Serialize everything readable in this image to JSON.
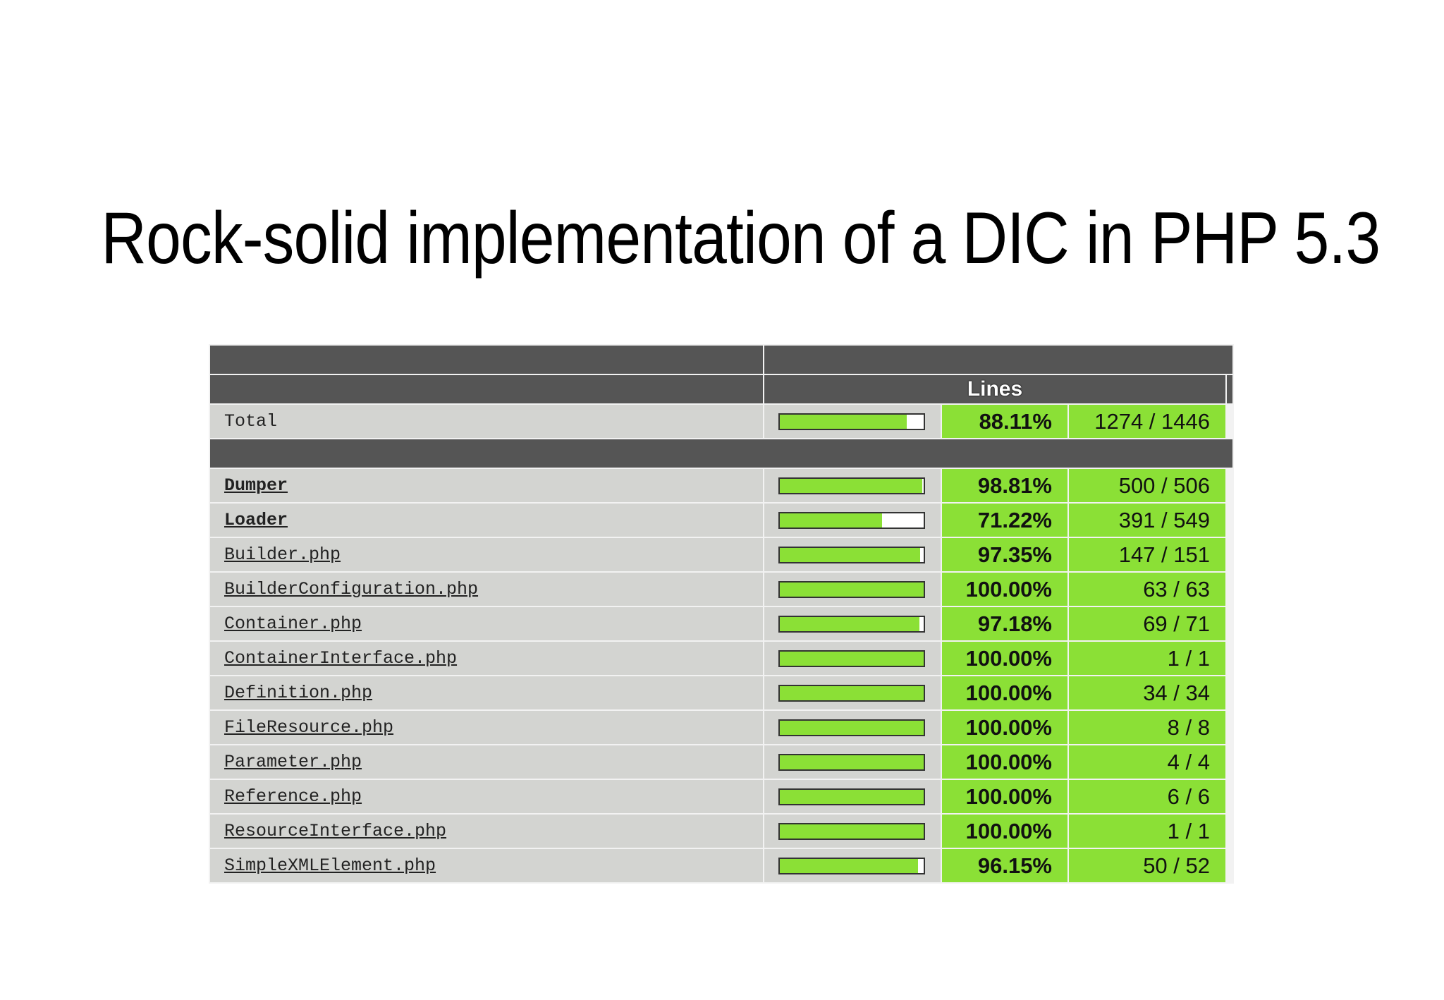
{
  "title": "Rock-solid implementation of a DIC in PHP 5.3",
  "table": {
    "lines_header": "Lines",
    "total": {
      "name": "Total",
      "coverage": 0.8811,
      "percent": "88.11%",
      "count": "1274 / 1446"
    },
    "rows": [
      {
        "name": "Dumper",
        "kind": "directory",
        "coverage": 0.9881,
        "percent": "98.81%",
        "count": "500 / 506"
      },
      {
        "name": "Loader",
        "kind": "directory",
        "coverage": 0.7122,
        "percent": "71.22%",
        "count": "391 / 549"
      },
      {
        "name": "Builder.php",
        "kind": "file",
        "coverage": 0.9735,
        "percent": "97.35%",
        "count": "147 / 151"
      },
      {
        "name": "BuilderConfiguration.php",
        "kind": "file",
        "coverage": 1.0,
        "percent": "100.00%",
        "count": "63 / 63"
      },
      {
        "name": "Container.php",
        "kind": "file",
        "coverage": 0.9718,
        "percent": "97.18%",
        "count": "69 / 71"
      },
      {
        "name": "ContainerInterface.php",
        "kind": "file",
        "coverage": 1.0,
        "percent": "100.00%",
        "count": "1 / 1"
      },
      {
        "name": "Definition.php",
        "kind": "file",
        "coverage": 1.0,
        "percent": "100.00%",
        "count": "34 / 34"
      },
      {
        "name": "FileResource.php",
        "kind": "file",
        "coverage": 1.0,
        "percent": "100.00%",
        "count": "8 / 8"
      },
      {
        "name": "Parameter.php",
        "kind": "file",
        "coverage": 1.0,
        "percent": "100.00%",
        "count": "4 / 4"
      },
      {
        "name": "Reference.php",
        "kind": "file",
        "coverage": 1.0,
        "percent": "100.00%",
        "count": "6 / 6"
      },
      {
        "name": "ResourceInterface.php",
        "kind": "file",
        "coverage": 1.0,
        "percent": "100.00%",
        "count": "1 / 1"
      },
      {
        "name": "SimpleXMLElement.php",
        "kind": "file",
        "coverage": 0.9615,
        "percent": "96.15%",
        "count": "50 / 52"
      }
    ]
  },
  "colors": {
    "header_bg": "#555555",
    "name_bg": "#d3d4d1",
    "coverage_high": "#8be036"
  }
}
